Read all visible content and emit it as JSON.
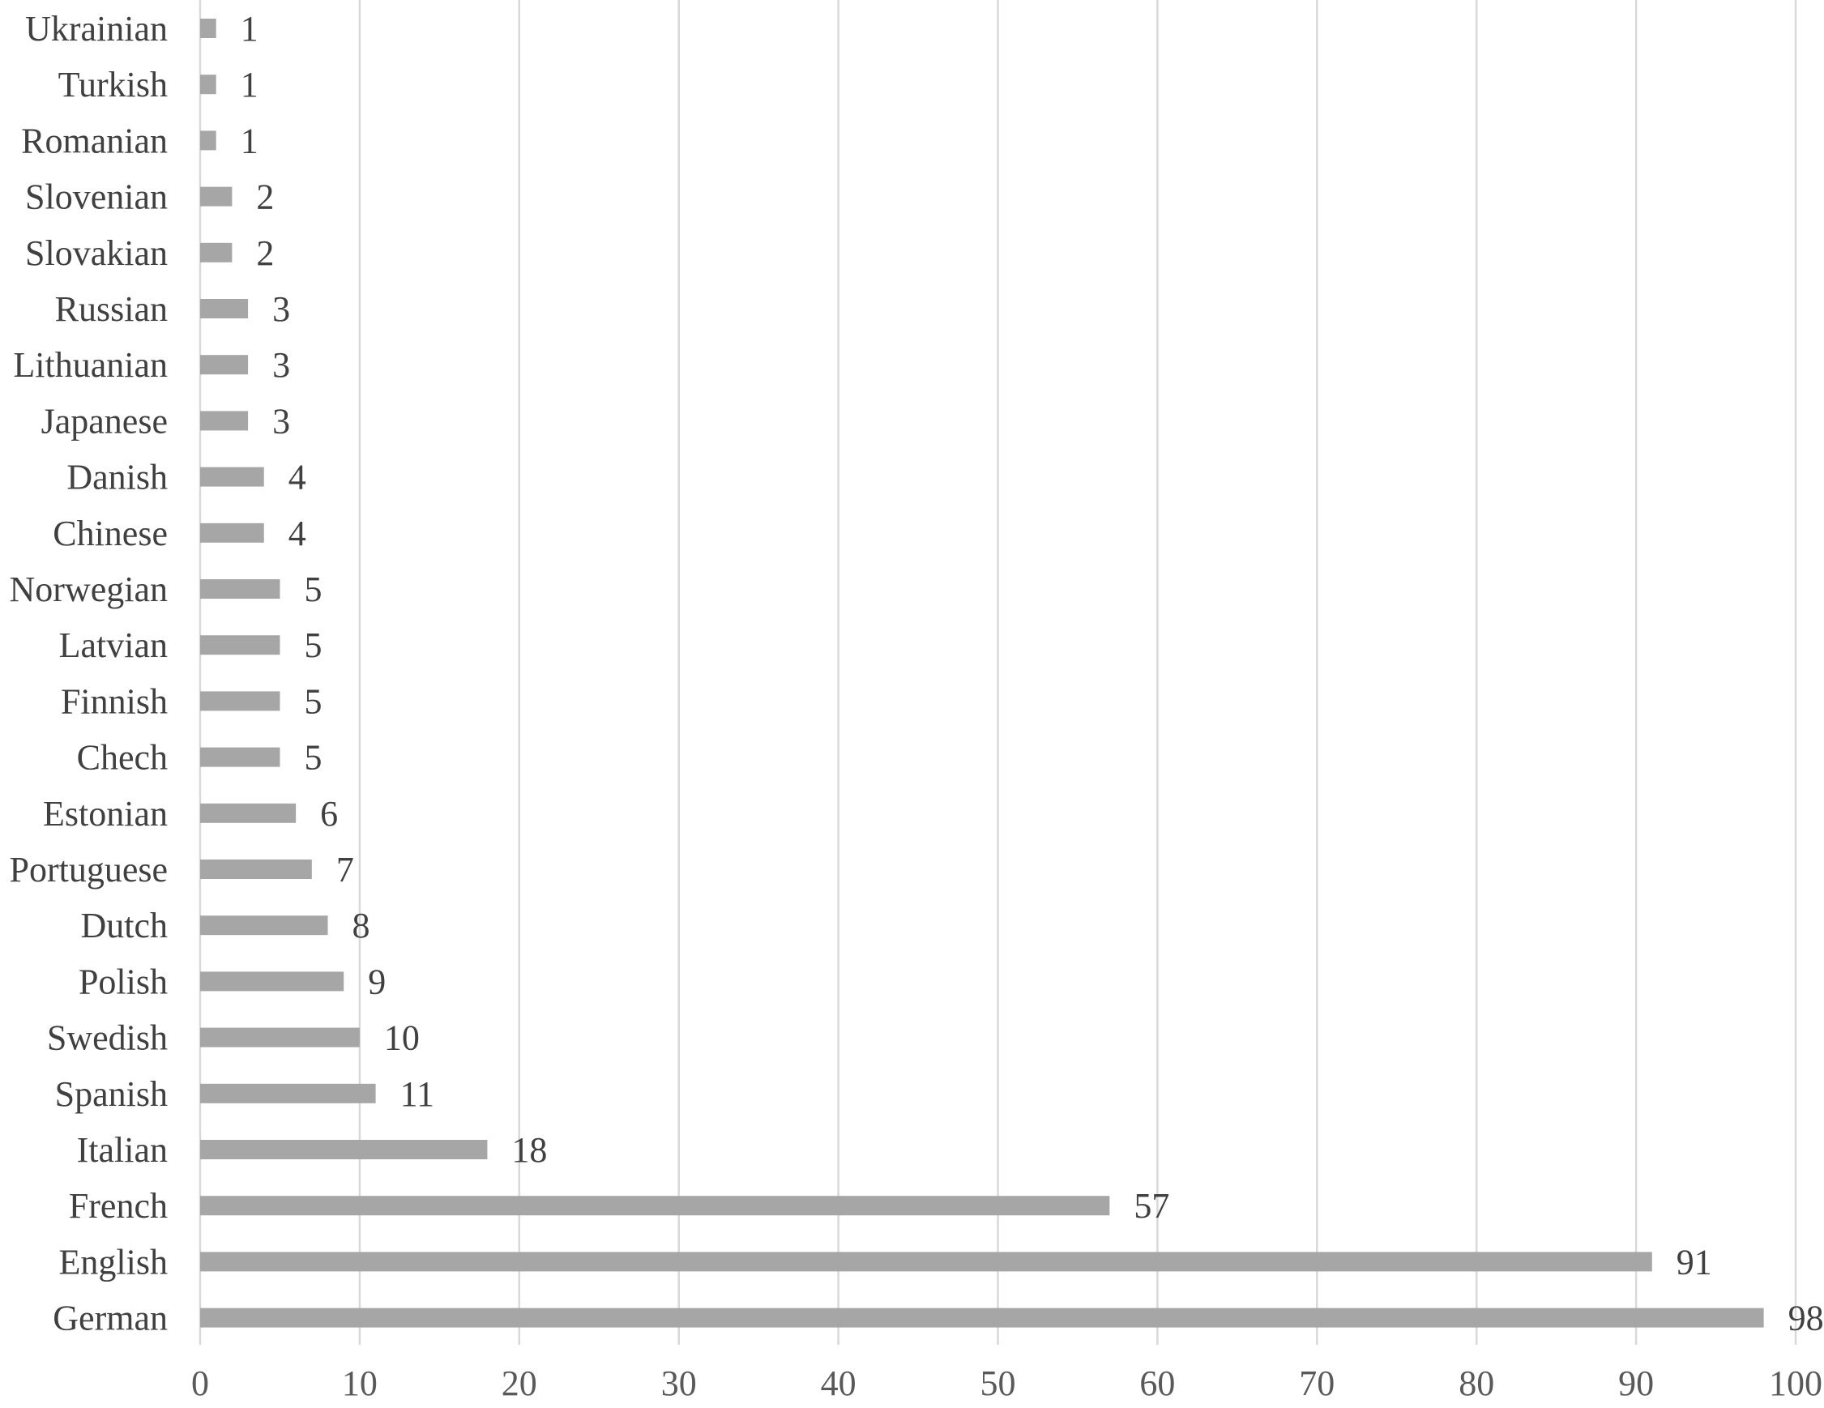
{
  "chart_data": {
    "type": "bar",
    "orientation": "horizontal",
    "categories": [
      "Ukrainian",
      "Turkish",
      "Romanian",
      "Slovenian",
      "Slovakian",
      "Russian",
      "Lithuanian",
      "Japanese",
      "Danish",
      "Chinese",
      "Norwegian",
      "Latvian",
      "Finnish",
      "Chech",
      "Estonian",
      "Portuguese",
      "Dutch",
      "Polish",
      "Swedish",
      "Spanish",
      "Italian",
      "French",
      "English",
      "German"
    ],
    "values": [
      1,
      1,
      1,
      2,
      2,
      3,
      3,
      3,
      4,
      4,
      5,
      5,
      5,
      5,
      6,
      7,
      8,
      9,
      10,
      11,
      18,
      57,
      91,
      98
    ],
    "xlim": [
      0,
      100
    ],
    "xticks": [
      0,
      10,
      20,
      30,
      40,
      50,
      60,
      70,
      80,
      90,
      100
    ],
    "grid": true,
    "data_labels": true,
    "bar_color": "#a6a6a6",
    "grid_color": "#d9d9d9",
    "text_color": "#404040"
  }
}
